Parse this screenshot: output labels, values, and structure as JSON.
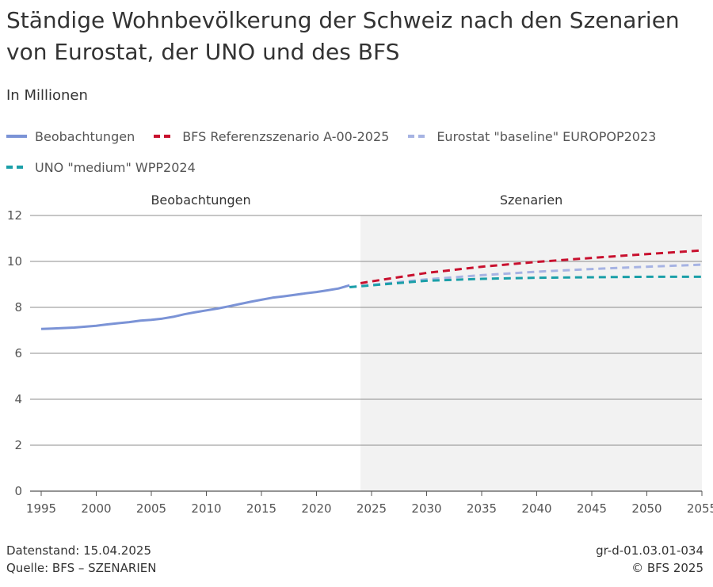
{
  "header": {
    "title": "Ständige Wohnbevölkerung der Schweiz nach den Szenarien von Eurostat, der UNO und des BFS",
    "subtitle": "In Millionen"
  },
  "colors": {
    "observations": "#7b93d6",
    "bfs": "#c8102e",
    "eurostat": "#a6b3e3",
    "uno": "#1a9fa8",
    "grid": "#8c8c8c",
    "scenario_bg": "#f2f2f2"
  },
  "legend": {
    "items": [
      {
        "label": "Beobachtungen"
      },
      {
        "label": "BFS Referenzszenario A-00-2025"
      },
      {
        "label": "Eurostat \"baseline\" EUROPOP2023"
      },
      {
        "label": "UNO \"medium\" WPP2024"
      }
    ]
  },
  "chart_data": {
    "type": "line",
    "title": "Ständige Wohnbevölkerung der Schweiz nach den Szenarien von Eurostat, der UNO und des BFS",
    "ylabel": "In Millionen",
    "xlabel": "",
    "xlim": [
      1995,
      2055
    ],
    "ylim": [
      0,
      12
    ],
    "x_ticks": [
      1995,
      2000,
      2005,
      2010,
      2015,
      2020,
      2025,
      2030,
      2035,
      2040,
      2045,
      2050,
      2055
    ],
    "y_ticks": [
      0,
      2,
      4,
      6,
      8,
      10,
      12
    ],
    "grid": true,
    "legend_position": "top",
    "regions": [
      {
        "label": "Beobachtungen",
        "from": 1995,
        "to": 2024
      },
      {
        "label": "Szenarien",
        "from": 2024,
        "to": 2055
      }
    ],
    "series": [
      {
        "name": "Beobachtungen",
        "style": "solid",
        "x": [
          1995,
          1996,
          1997,
          1998,
          1999,
          2000,
          2001,
          2002,
          2003,
          2004,
          2005,
          2006,
          2007,
          2008,
          2009,
          2010,
          2011,
          2012,
          2013,
          2014,
          2015,
          2016,
          2017,
          2018,
          2019,
          2020,
          2021,
          2022,
          2023
        ],
        "values": [
          7.06,
          7.08,
          7.1,
          7.12,
          7.16,
          7.2,
          7.26,
          7.31,
          7.36,
          7.42,
          7.46,
          7.51,
          7.59,
          7.7,
          7.79,
          7.87,
          7.95,
          8.04,
          8.14,
          8.24,
          8.33,
          8.42,
          8.48,
          8.54,
          8.61,
          8.67,
          8.74,
          8.82,
          8.96
        ]
      },
      {
        "name": "BFS Referenzszenario A-00-2025",
        "style": "dashed",
        "x": [
          2024,
          2025,
          2030,
          2035,
          2040,
          2045,
          2050,
          2055
        ],
        "values": [
          9.05,
          9.13,
          9.5,
          9.77,
          9.98,
          10.15,
          10.32,
          10.48
        ]
      },
      {
        "name": "Eurostat \"baseline\" EUROPOP2023",
        "style": "dashed",
        "x": [
          2023,
          2025,
          2030,
          2035,
          2040,
          2045,
          2050,
          2055
        ],
        "values": [
          8.88,
          8.98,
          9.22,
          9.4,
          9.55,
          9.67,
          9.77,
          9.86
        ]
      },
      {
        "name": "UNO \"medium\" WPP2024",
        "style": "dashed",
        "x": [
          2023,
          2025,
          2030,
          2035,
          2040,
          2045,
          2050,
          2055
        ],
        "values": [
          8.88,
          8.96,
          9.16,
          9.24,
          9.29,
          9.31,
          9.33,
          9.33
        ]
      }
    ]
  },
  "footer": {
    "datenstand": "Datenstand: 15.04.2025",
    "quelle": "Quelle: BFS – SZENARIEN",
    "code": "gr-d-01.03.01-034",
    "copyright": "© BFS 2025"
  }
}
